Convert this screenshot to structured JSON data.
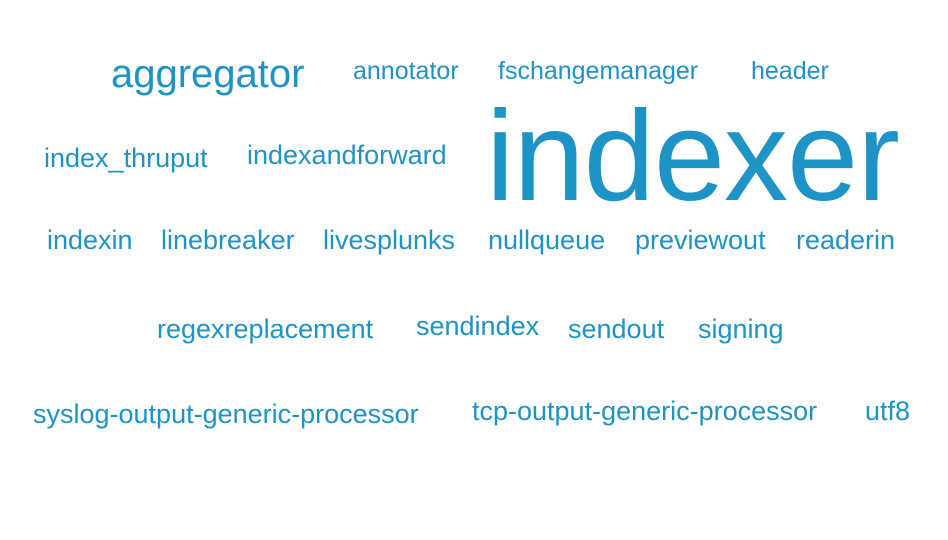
{
  "colors": {
    "word": "#1e93c6",
    "background": "#ffffff"
  },
  "cloud": {
    "words": [
      "aggregator",
      "annotator",
      "fschangemanager",
      "header",
      "index_thruput",
      "indexandforward",
      "indexer",
      "indexin",
      "linebreaker",
      "livesplunks",
      "nullqueue",
      "previewout",
      "readerin",
      "regexreplacement",
      "sendindex",
      "sendout",
      "signing",
      "syslog-output-generic-processor",
      "tcp-output-generic-processor",
      "utf8"
    ]
  }
}
